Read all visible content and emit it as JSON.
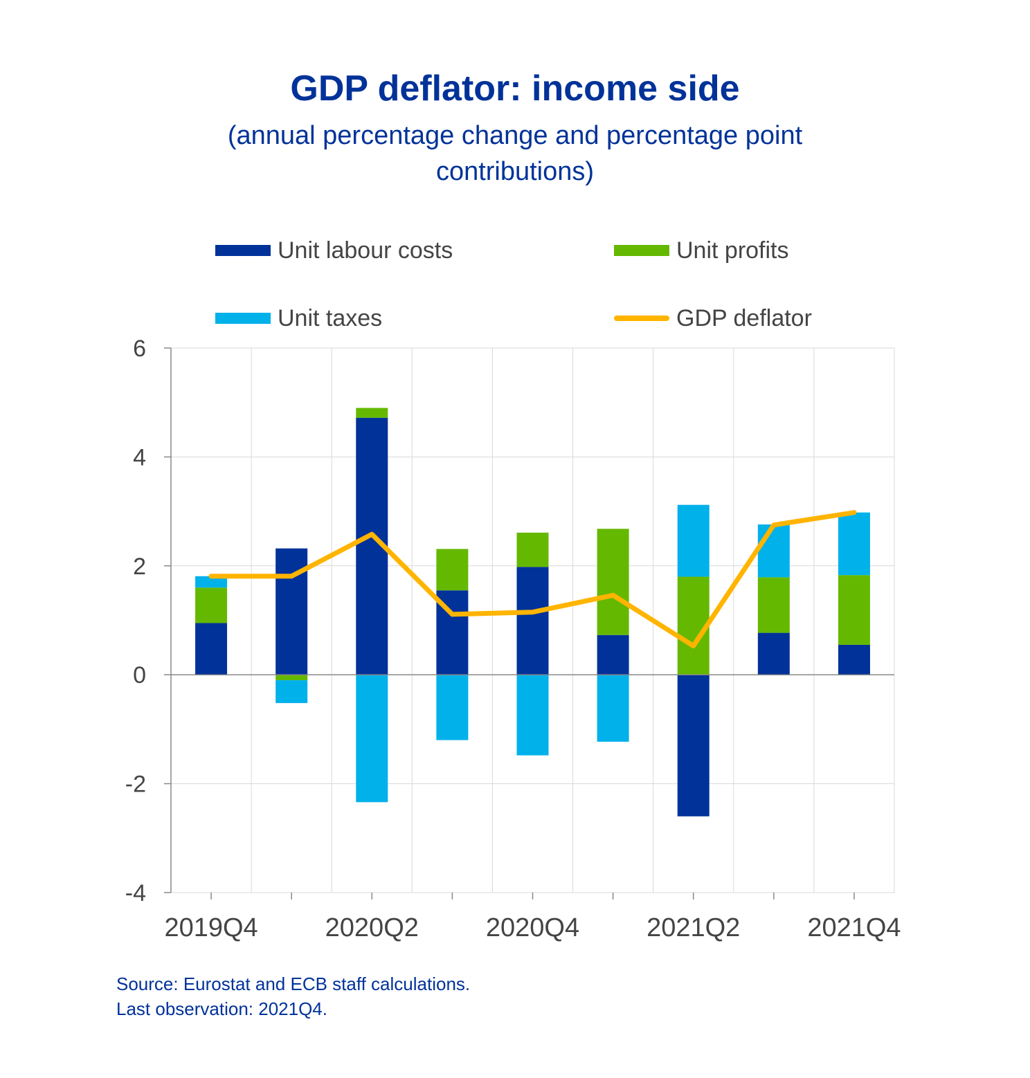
{
  "chart_data": {
    "type": "bar",
    "title": "GDP deflator: income side",
    "subtitle": "(annual percentage change and percentage point contributions)",
    "categories": [
      "2019Q4",
      "2020Q1",
      "2020Q2",
      "2020Q3",
      "2020Q4",
      "2021Q1",
      "2021Q2",
      "2021Q3",
      "2021Q4"
    ],
    "x_tick_labels": [
      "2019Q4",
      "",
      "2020Q2",
      "",
      "2020Q4",
      "",
      "2021Q2",
      "",
      "2021Q4"
    ],
    "y_tick_labels": [
      "6",
      "4",
      "2",
      "0",
      "-2",
      "-4"
    ],
    "ylim": [
      -4,
      6
    ],
    "y_ticks": [
      6,
      4,
      2,
      0,
      -2,
      -4
    ],
    "stacked": true,
    "grid": true,
    "legend_position": "top",
    "series": [
      {
        "name": "Unit labour costs",
        "kind": "bar",
        "color": "#003299",
        "values": [
          0.95,
          2.32,
          4.72,
          1.55,
          1.98,
          0.73,
          -2.6,
          0.77,
          0.55
        ]
      },
      {
        "name": "Unit profits",
        "kind": "bar",
        "color": "#65B800",
        "values": [
          0.65,
          -0.1,
          0.18,
          0.76,
          0.63,
          1.95,
          1.8,
          1.02,
          1.28
        ]
      },
      {
        "name": "Unit taxes",
        "kind": "bar",
        "color": "#00B1EA",
        "values": [
          0.21,
          -0.42,
          -2.34,
          -1.2,
          -1.48,
          -1.23,
          1.32,
          0.97,
          1.15
        ]
      },
      {
        "name": "GDP deflator",
        "kind": "line",
        "color": "#FFB400",
        "values": [
          1.81,
          1.81,
          2.58,
          1.11,
          1.15,
          1.46,
          0.53,
          2.75,
          2.98
        ]
      }
    ]
  },
  "notes": {
    "source": "Source: Eurostat and ECB staff calculations.",
    "last_observation": "Last observation: 2021Q4."
  }
}
